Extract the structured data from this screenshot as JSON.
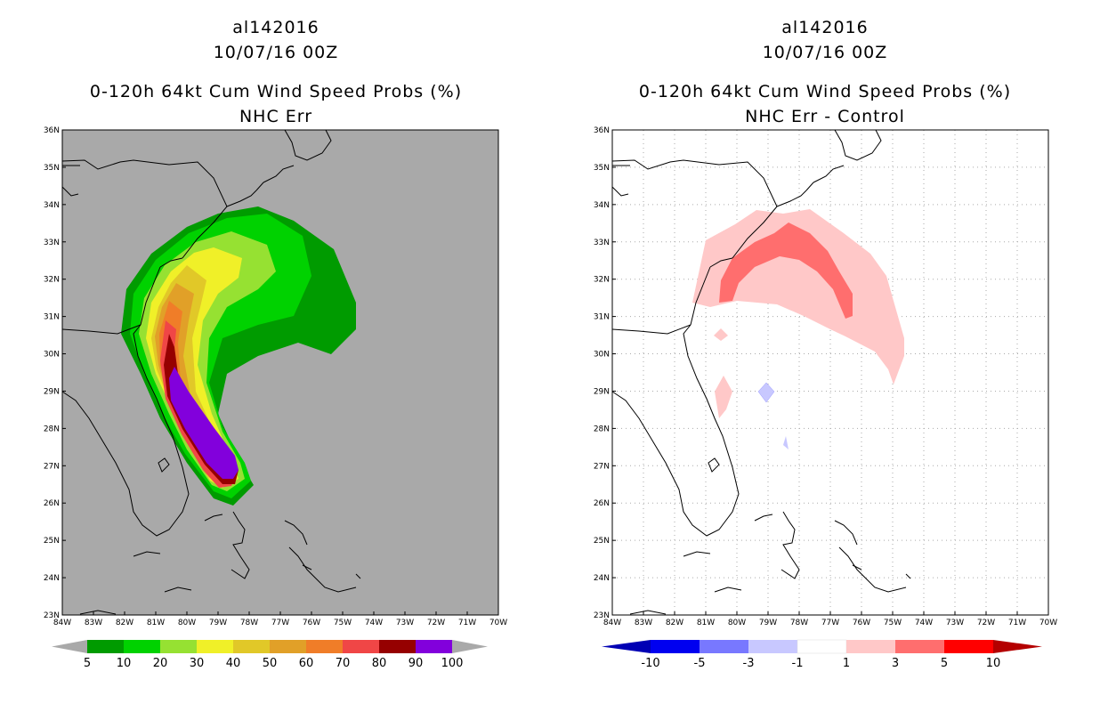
{
  "left": {
    "line1": "al142016",
    "line2": "10/07/16 00Z",
    "line3": "0-120h 64kt Cum Wind Speed Probs (%)",
    "line4": "NHC Err",
    "colorbar": {
      "labels": [
        "5",
        "10",
        "20",
        "30",
        "40",
        "50",
        "60",
        "70",
        "80",
        "90",
        "100"
      ],
      "colors": [
        "#009b00",
        "#00d200",
        "#96e132",
        "#f0f028",
        "#e1c828",
        "#e1a028",
        "#f07d28",
        "#f04646",
        "#960000",
        "#8200dc"
      ]
    }
  },
  "right": {
    "line1": "al142016",
    "line2": "10/07/16 00Z",
    "line3": "0-120h 64kt Cum Wind Speed Probs (%)",
    "line4": "NHC Err - Control",
    "colorbar": {
      "labels": [
        "-10",
        "-5",
        "-3",
        "-1",
        "1",
        "3",
        "5",
        "10"
      ],
      "colors": [
        "#0000b4",
        "#0000f0",
        "#7878ff",
        "#c8c8ff",
        "#ffffff",
        "#ffc8c8",
        "#ff6e6e",
        "#ff0000",
        "#b40000"
      ]
    }
  },
  "map": {
    "lat_labels": [
      "36N",
      "35N",
      "34N",
      "33N",
      "32N",
      "31N",
      "30N",
      "29N",
      "28N",
      "27N",
      "26N",
      "25N",
      "24N",
      "23N"
    ],
    "lon_labels": [
      "84W",
      "83W",
      "82W",
      "81W",
      "80W",
      "79W",
      "78W",
      "77W",
      "76W",
      "75W",
      "74W",
      "73W",
      "72W",
      "71W",
      "70W"
    ]
  },
  "colors": {
    "ocean": "#a9a9a9",
    "grid": "#aaaaaa"
  }
}
